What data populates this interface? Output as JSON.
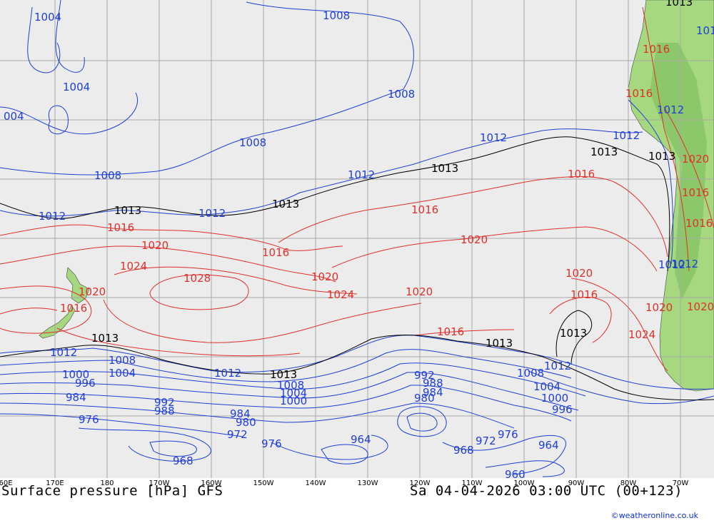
{
  "title_left": "Surface pressure [hPa] GFS",
  "title_right": "Sa 04-04-2026 03:00 UTC (00+123)",
  "credit": "©weatheronline.co.uk",
  "longitude_labels": [
    "60E",
    "170E",
    "180",
    "170W",
    "160W",
    "150W",
    "140W",
    "130W",
    "120W",
    "110W",
    "100W",
    "90W",
    "80W",
    "70W"
  ],
  "colors": {
    "ocean": "#ececec",
    "land": "#a5d87f",
    "grid": "#a8a8a8",
    "low_isobar": "#1f3fd6",
    "high_isobar": "#e0302a",
    "ref_isobar": "#000000"
  },
  "isobar_labels": [
    {
      "text": "1004",
      "kind": "low"
    },
    {
      "text": "1004",
      "kind": "low"
    },
    {
      "text": "004",
      "kind": "low"
    },
    {
      "text": "1008",
      "kind": "low"
    },
    {
      "text": "1008",
      "kind": "low"
    },
    {
      "text": "1008",
      "kind": "low"
    },
    {
      "text": "1008",
      "kind": "low"
    },
    {
      "text": "1012",
      "kind": "low"
    },
    {
      "text": "1012",
      "kind": "low"
    },
    {
      "text": "1012",
      "kind": "low"
    },
    {
      "text": "1012",
      "kind": "low"
    },
    {
      "text": "1012",
      "kind": "low"
    },
    {
      "text": "1013",
      "kind": "ref"
    },
    {
      "text": "1013",
      "kind": "ref"
    },
    {
      "text": "1013",
      "kind": "ref"
    },
    {
      "text": "1013",
      "kind": "ref"
    },
    {
      "text": "1013",
      "kind": "ref"
    },
    {
      "text": "1016",
      "kind": "high"
    },
    {
      "text": "1016",
      "kind": "high"
    },
    {
      "text": "1016",
      "kind": "high"
    },
    {
      "text": "1016",
      "kind": "high"
    },
    {
      "text": "1020",
      "kind": "high"
    },
    {
      "text": "1020",
      "kind": "high"
    },
    {
      "text": "1020",
      "kind": "high"
    },
    {
      "text": "1020",
      "kind": "high"
    },
    {
      "text": "1024",
      "kind": "high"
    },
    {
      "text": "1024",
      "kind": "high"
    },
    {
      "text": "1028",
      "kind": "high"
    },
    {
      "text": "1020",
      "kind": "high"
    },
    {
      "text": "1016",
      "kind": "high"
    },
    {
      "text": "1013",
      "kind": "ref"
    },
    {
      "text": "1012",
      "kind": "low"
    },
    {
      "text": "1008",
      "kind": "low"
    },
    {
      "text": "1004",
      "kind": "low"
    },
    {
      "text": "1000",
      "kind": "low"
    },
    {
      "text": "996",
      "kind": "low"
    },
    {
      "text": "984",
      "kind": "low"
    },
    {
      "text": "976",
      "kind": "low"
    },
    {
      "text": "992",
      "kind": "low"
    },
    {
      "text": "988",
      "kind": "low"
    },
    {
      "text": "1012",
      "kind": "low"
    },
    {
      "text": "1013",
      "kind": "ref"
    },
    {
      "text": "1008",
      "kind": "low"
    },
    {
      "text": "1004",
      "kind": "low"
    },
    {
      "text": "1000",
      "kind": "low"
    },
    {
      "text": "984",
      "kind": "low"
    },
    {
      "text": "980",
      "kind": "low"
    },
    {
      "text": "972",
      "kind": "low"
    },
    {
      "text": "976",
      "kind": "low"
    },
    {
      "text": "968",
      "kind": "low"
    },
    {
      "text": "992",
      "kind": "low"
    },
    {
      "text": "988",
      "kind": "low"
    },
    {
      "text": "984",
      "kind": "low"
    },
    {
      "text": "980",
      "kind": "low"
    },
    {
      "text": "964",
      "kind": "low"
    },
    {
      "text": "968",
      "kind": "low"
    },
    {
      "text": "972",
      "kind": "low"
    },
    {
      "text": "976",
      "kind": "low"
    },
    {
      "text": "1013",
      "kind": "ref"
    },
    {
      "text": "1012",
      "kind": "low"
    },
    {
      "text": "1008",
      "kind": "low"
    },
    {
      "text": "1004",
      "kind": "low"
    },
    {
      "text": "1000",
      "kind": "low"
    },
    {
      "text": "996",
      "kind": "low"
    },
    {
      "text": "964",
      "kind": "low"
    },
    {
      "text": "960",
      "kind": "low"
    },
    {
      "text": "1016",
      "kind": "high"
    },
    {
      "text": "1020",
      "kind": "high"
    },
    {
      "text": "1013",
      "kind": "ref"
    },
    {
      "text": "1024",
      "kind": "high"
    },
    {
      "text": "1020",
      "kind": "high"
    },
    {
      "text": "1012",
      "kind": "low"
    },
    {
      "text": "1016",
      "kind": "high"
    },
    {
      "text": "1020",
      "kind": "high"
    },
    {
      "text": "1016",
      "kind": "high"
    },
    {
      "text": "1016",
      "kind": "high"
    },
    {
      "text": "1012",
      "kind": "low"
    },
    {
      "text": "1013",
      "kind": "ref"
    },
    {
      "text": "1012",
      "kind": "low"
    },
    {
      "text": "1016",
      "kind": "high"
    },
    {
      "text": "1012",
      "kind": "low"
    },
    {
      "text": "1016",
      "kind": "high"
    },
    {
      "text": "1020",
      "kind": "high"
    }
  ]
}
